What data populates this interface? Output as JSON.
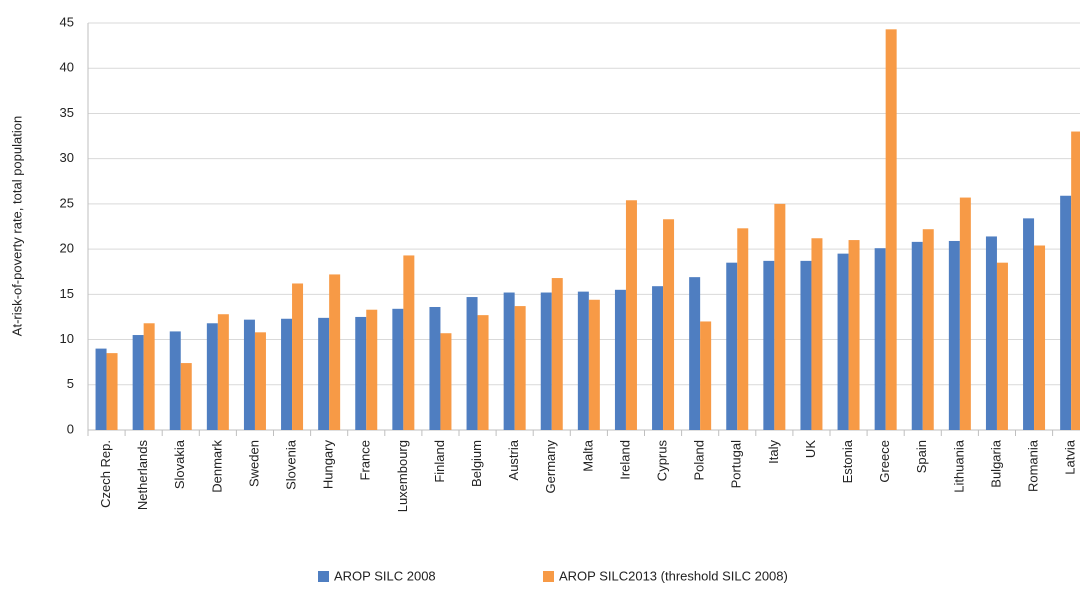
{
  "chart_data": {
    "type": "bar",
    "y_axis_label": "At-risk-of-poverty rate, total population",
    "categories": [
      "Czech Rep.",
      "Netherlands",
      "Slovakia",
      "Denmark",
      "Sweden",
      "Slovenia",
      "Hungary",
      "France",
      "Luxembourg",
      "Finland",
      "Belgium",
      "Austria",
      "Germany",
      "Malta",
      "Ireland",
      "Cyprus",
      "Poland",
      "Portugal",
      "Italy",
      "UK",
      "Estonia",
      "Greece",
      "Spain",
      "Lithuania",
      "Bulgaria",
      "Romania",
      "Latvia"
    ],
    "series": [
      {
        "name": "AROP SILC 2008",
        "color": "#4f7ec1",
        "values": [
          9.0,
          10.5,
          10.9,
          11.8,
          12.2,
          12.3,
          12.4,
          12.5,
          13.4,
          13.6,
          14.7,
          15.2,
          15.2,
          15.3,
          15.5,
          15.9,
          16.9,
          18.5,
          18.7,
          18.7,
          19.5,
          20.1,
          20.8,
          20.9,
          21.4,
          23.4,
          25.9
        ]
      },
      {
        "name": "AROP SILC2013 (threshold SILC 2008)",
        "color": "#f79a46",
        "values": [
          8.5,
          11.8,
          7.4,
          12.8,
          10.8,
          16.2,
          17.2,
          13.3,
          19.3,
          10.7,
          12.7,
          13.7,
          16.8,
          14.4,
          25.4,
          23.3,
          12.0,
          22.3,
          25.0,
          21.2,
          21.0,
          44.3,
          22.2,
          25.7,
          18.5,
          20.4,
          33.0
        ]
      }
    ],
    "ylim": [
      0,
      45
    ],
    "yticks": [
      0,
      5,
      10,
      15,
      20,
      25,
      30,
      35,
      40,
      45
    ],
    "grid": true,
    "legend": "bottom"
  }
}
